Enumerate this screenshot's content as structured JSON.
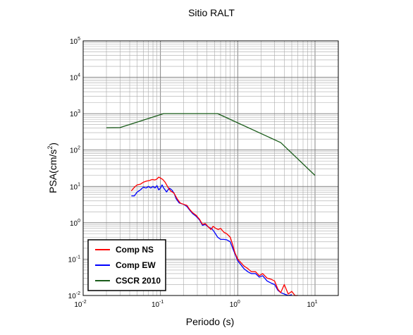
{
  "chart_data": {
    "type": "line",
    "title": "Sitio RALT",
    "xlabel": "Periodo (s)",
    "ylabel_main": "PSA(cm/s",
    "ylabel_sup": "2",
    "ylabel_end": ")",
    "x_scale": "log",
    "y_scale": "log",
    "xlim": [
      0.01,
      20
    ],
    "ylim": [
      0.01,
      100000
    ],
    "grid": true,
    "legend_position": "bottom-left",
    "x_ticks": [
      {
        "value": 0.01,
        "base": "10",
        "exp": "-2"
      },
      {
        "value": 0.1,
        "base": "10",
        "exp": "-1"
      },
      {
        "value": 1,
        "base": "10",
        "exp": "0"
      },
      {
        "value": 10,
        "base": "10",
        "exp": "1"
      }
    ],
    "y_ticks": [
      {
        "value": 0.01,
        "base": "10",
        "exp": "-2"
      },
      {
        "value": 0.1,
        "base": "10",
        "exp": "-1"
      },
      {
        "value": 1,
        "base": "10",
        "exp": "0"
      },
      {
        "value": 10,
        "base": "10",
        "exp": "1"
      },
      {
        "value": 100,
        "base": "10",
        "exp": "2"
      },
      {
        "value": 1000,
        "base": "10",
        "exp": "3"
      },
      {
        "value": 10000,
        "base": "10",
        "exp": "4"
      },
      {
        "value": 100000,
        "base": "10",
        "exp": "5"
      }
    ],
    "series": [
      {
        "name": "Comp NS",
        "color": "#ff0000",
        "points": [
          [
            0.042,
            7.5
          ],
          [
            0.046,
            9.5
          ],
          [
            0.05,
            11
          ],
          [
            0.055,
            11.5
          ],
          [
            0.06,
            13
          ],
          [
            0.066,
            14
          ],
          [
            0.072,
            14.5
          ],
          [
            0.078,
            15.5
          ],
          [
            0.085,
            15
          ],
          [
            0.09,
            16
          ],
          [
            0.095,
            18
          ],
          [
            0.1,
            17
          ],
          [
            0.107,
            15.5
          ],
          [
            0.115,
            13
          ],
          [
            0.125,
            9.5
          ],
          [
            0.135,
            7.5
          ],
          [
            0.15,
            6.5
          ],
          [
            0.165,
            4.5
          ],
          [
            0.18,
            3.5
          ],
          [
            0.2,
            3.2
          ],
          [
            0.22,
            3.0
          ],
          [
            0.24,
            2.3
          ],
          [
            0.26,
            1.9
          ],
          [
            0.29,
            1.6
          ],
          [
            0.32,
            1.25
          ],
          [
            0.35,
            0.9
          ],
          [
            0.38,
            0.95
          ],
          [
            0.41,
            0.8
          ],
          [
            0.45,
            0.65
          ],
          [
            0.48,
            0.8
          ],
          [
            0.52,
            0.7
          ],
          [
            0.56,
            0.65
          ],
          [
            0.6,
            0.7
          ],
          [
            0.66,
            0.55
          ],
          [
            0.72,
            0.5
          ],
          [
            0.8,
            0.4
          ],
          [
            0.86,
            0.25
          ],
          [
            0.92,
            0.15
          ],
          [
            1.0,
            0.1
          ],
          [
            1.1,
            0.08
          ],
          [
            1.2,
            0.065
          ],
          [
            1.35,
            0.055
          ],
          [
            1.5,
            0.045
          ],
          [
            1.7,
            0.045
          ],
          [
            1.9,
            0.035
          ],
          [
            2.1,
            0.04
          ],
          [
            2.4,
            0.03
          ],
          [
            2.7,
            0.028
          ],
          [
            3.0,
            0.025
          ],
          [
            3.3,
            0.015
          ],
          [
            3.6,
            0.012
          ],
          [
            4.0,
            0.02
          ],
          [
            4.5,
            0.011
          ],
          [
            5.0,
            0.013
          ],
          [
            5.5,
            0.01
          ],
          [
            6.0,
            0.01
          ],
          [
            7.0,
            0.0095
          ]
        ]
      },
      {
        "name": "Comp EW",
        "color": "#0000ff",
        "points": [
          [
            0.042,
            5.5
          ],
          [
            0.046,
            5.5
          ],
          [
            0.05,
            7
          ],
          [
            0.055,
            8
          ],
          [
            0.06,
            9.5
          ],
          [
            0.065,
            9
          ],
          [
            0.07,
            10
          ],
          [
            0.075,
            9
          ],
          [
            0.08,
            10
          ],
          [
            0.085,
            9
          ],
          [
            0.09,
            10.5
          ],
          [
            0.095,
            8
          ],
          [
            0.1,
            9
          ],
          [
            0.105,
            11
          ],
          [
            0.11,
            9
          ],
          [
            0.115,
            8
          ],
          [
            0.12,
            7
          ],
          [
            0.13,
            9
          ],
          [
            0.14,
            8
          ],
          [
            0.15,
            6.5
          ],
          [
            0.16,
            4.5
          ],
          [
            0.175,
            3.5
          ],
          [
            0.2,
            3.2
          ],
          [
            0.22,
            2.8
          ],
          [
            0.24,
            2.2
          ],
          [
            0.26,
            1.8
          ],
          [
            0.29,
            1.5
          ],
          [
            0.32,
            1.2
          ],
          [
            0.35,
            0.85
          ],
          [
            0.38,
            0.9
          ],
          [
            0.42,
            0.75
          ],
          [
            0.46,
            0.7
          ],
          [
            0.5,
            0.55
          ],
          [
            0.55,
            0.4
          ],
          [
            0.6,
            0.35
          ],
          [
            0.66,
            0.35
          ],
          [
            0.72,
            0.34
          ],
          [
            0.8,
            0.3
          ],
          [
            0.86,
            0.2
          ],
          [
            0.92,
            0.14
          ],
          [
            1.0,
            0.09
          ],
          [
            1.1,
            0.07
          ],
          [
            1.2,
            0.055
          ],
          [
            1.35,
            0.045
          ],
          [
            1.5,
            0.04
          ],
          [
            1.7,
            0.04
          ],
          [
            1.9,
            0.032
          ],
          [
            2.1,
            0.035
          ],
          [
            2.4,
            0.025
          ],
          [
            2.7,
            0.022
          ],
          [
            3.0,
            0.02
          ],
          [
            3.3,
            0.014
          ],
          [
            3.6,
            0.012
          ],
          [
            4.0,
            0.011
          ],
          [
            4.5,
            0.01
          ],
          [
            5.0,
            0.0105
          ],
          [
            6.0,
            0.0095
          ]
        ]
      },
      {
        "name": "CSCR 2010",
        "color": "#1a5c1a",
        "points": [
          [
            0.02,
            410
          ],
          [
            0.03,
            415
          ],
          [
            0.11,
            1000
          ],
          [
            0.55,
            1000
          ],
          [
            3.6,
            160
          ],
          [
            10,
            20
          ]
        ]
      }
    ]
  }
}
